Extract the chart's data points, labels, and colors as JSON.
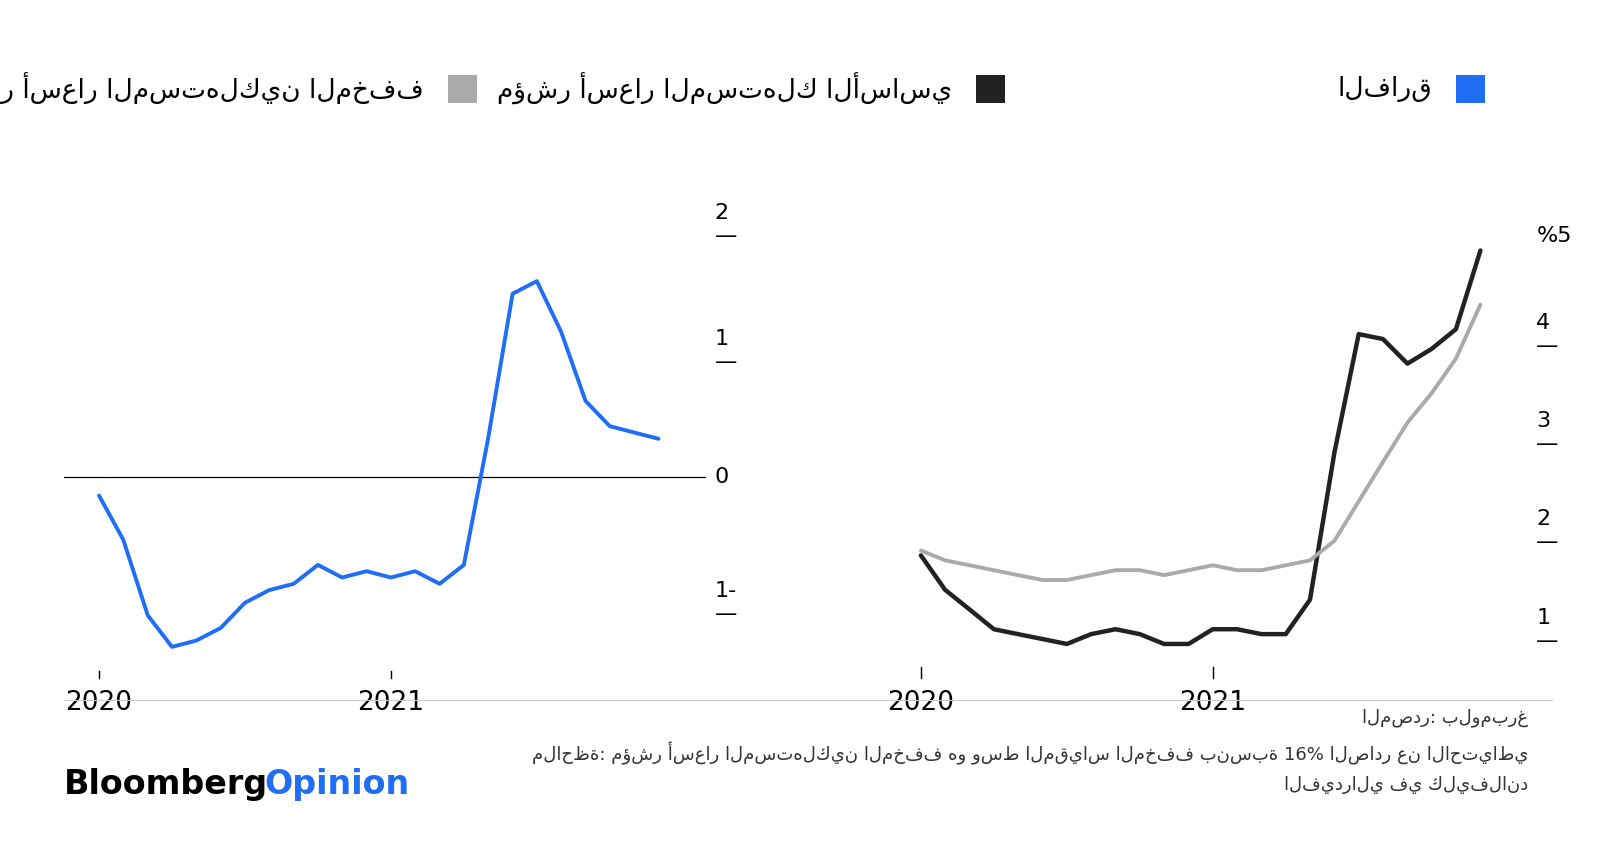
{
  "legend_items": [
    {
      "label": "مؤشر أسعار المستهلكين المخفف",
      "color": "#aaaaaa"
    },
    {
      "label": "مؤشر أسعار المستهلك الأساسي",
      "color": "#222222"
    },
    {
      "label": "الفارق",
      "color": "#1f6ef5"
    }
  ],
  "left_chart": {
    "x": [
      2020.0,
      2020.083,
      2020.167,
      2020.25,
      2020.333,
      2020.417,
      2020.5,
      2020.583,
      2020.667,
      2020.75,
      2020.833,
      2020.917,
      2021.0,
      2021.083,
      2021.167,
      2021.25,
      2021.333,
      2021.417,
      2021.5,
      2021.583,
      2021.667,
      2021.75,
      2021.833,
      2021.917
    ],
    "y": [
      -0.15,
      -0.5,
      -1.1,
      -1.35,
      -1.3,
      -1.2,
      -1.0,
      -0.9,
      -0.85,
      -0.7,
      -0.8,
      -0.75,
      -0.8,
      -0.75,
      -0.85,
      -0.7,
      0.3,
      1.45,
      1.55,
      1.15,
      0.6,
      0.4,
      0.35,
      0.3
    ],
    "color": "#1f6ef5",
    "ylim": [
      -1.6,
      2.3
    ],
    "yticks": [
      -1,
      0,
      1,
      2
    ],
    "xticks": [
      2020,
      2021
    ],
    "xlim": [
      2019.88,
      2022.08
    ]
  },
  "right_chart": {
    "x_black": [
      2020.0,
      2020.083,
      2020.167,
      2020.25,
      2020.333,
      2020.417,
      2020.5,
      2020.583,
      2020.667,
      2020.75,
      2020.833,
      2020.917,
      2021.0,
      2021.083,
      2021.167,
      2021.25,
      2021.333,
      2021.417,
      2021.5,
      2021.583,
      2021.667,
      2021.75,
      2021.833,
      2021.917
    ],
    "y_black": [
      1.75,
      1.4,
      1.2,
      1.0,
      0.95,
      0.9,
      0.85,
      0.95,
      1.0,
      0.95,
      0.85,
      0.85,
      1.0,
      1.0,
      0.95,
      0.95,
      1.3,
      2.8,
      4.0,
      3.95,
      3.7,
      3.85,
      4.05,
      4.85
    ],
    "x_gray": [
      2020.0,
      2020.083,
      2020.167,
      2020.25,
      2020.333,
      2020.417,
      2020.5,
      2020.583,
      2020.667,
      2020.75,
      2020.833,
      2020.917,
      2021.0,
      2021.083,
      2021.167,
      2021.25,
      2021.333,
      2021.417,
      2021.5,
      2021.583,
      2021.667,
      2021.75,
      2021.833,
      2021.917
    ],
    "y_gray": [
      1.8,
      1.7,
      1.65,
      1.6,
      1.55,
      1.5,
      1.5,
      1.55,
      1.6,
      1.6,
      1.55,
      1.6,
      1.65,
      1.6,
      1.6,
      1.65,
      1.7,
      1.9,
      2.3,
      2.7,
      3.1,
      3.4,
      3.75,
      4.3
    ],
    "black_color": "#222222",
    "gray_color": "#aaaaaa",
    "ylim": [
      0.5,
      5.5
    ],
    "yticks": [
      1,
      2,
      3,
      4,
      5
    ],
    "ylabel_text": "%5",
    "xticks": [
      2020,
      2021
    ],
    "xlim": [
      2019.88,
      2022.08
    ]
  },
  "source_text": "المصدر: بلومبرغ",
  "note_text": "ملاحظة: مؤشر أسعار المستهلكين المخفف هو وسط المقياس المخفف بنسبة 16% الصادر عن الاحتياطي",
  "note_text2": "الفيدرالي في كليفلاند",
  "bloomberg_text": "Bloomberg",
  "opinion_text": "Opinion",
  "bg_color": "#ffffff",
  "line_width": 2.8
}
